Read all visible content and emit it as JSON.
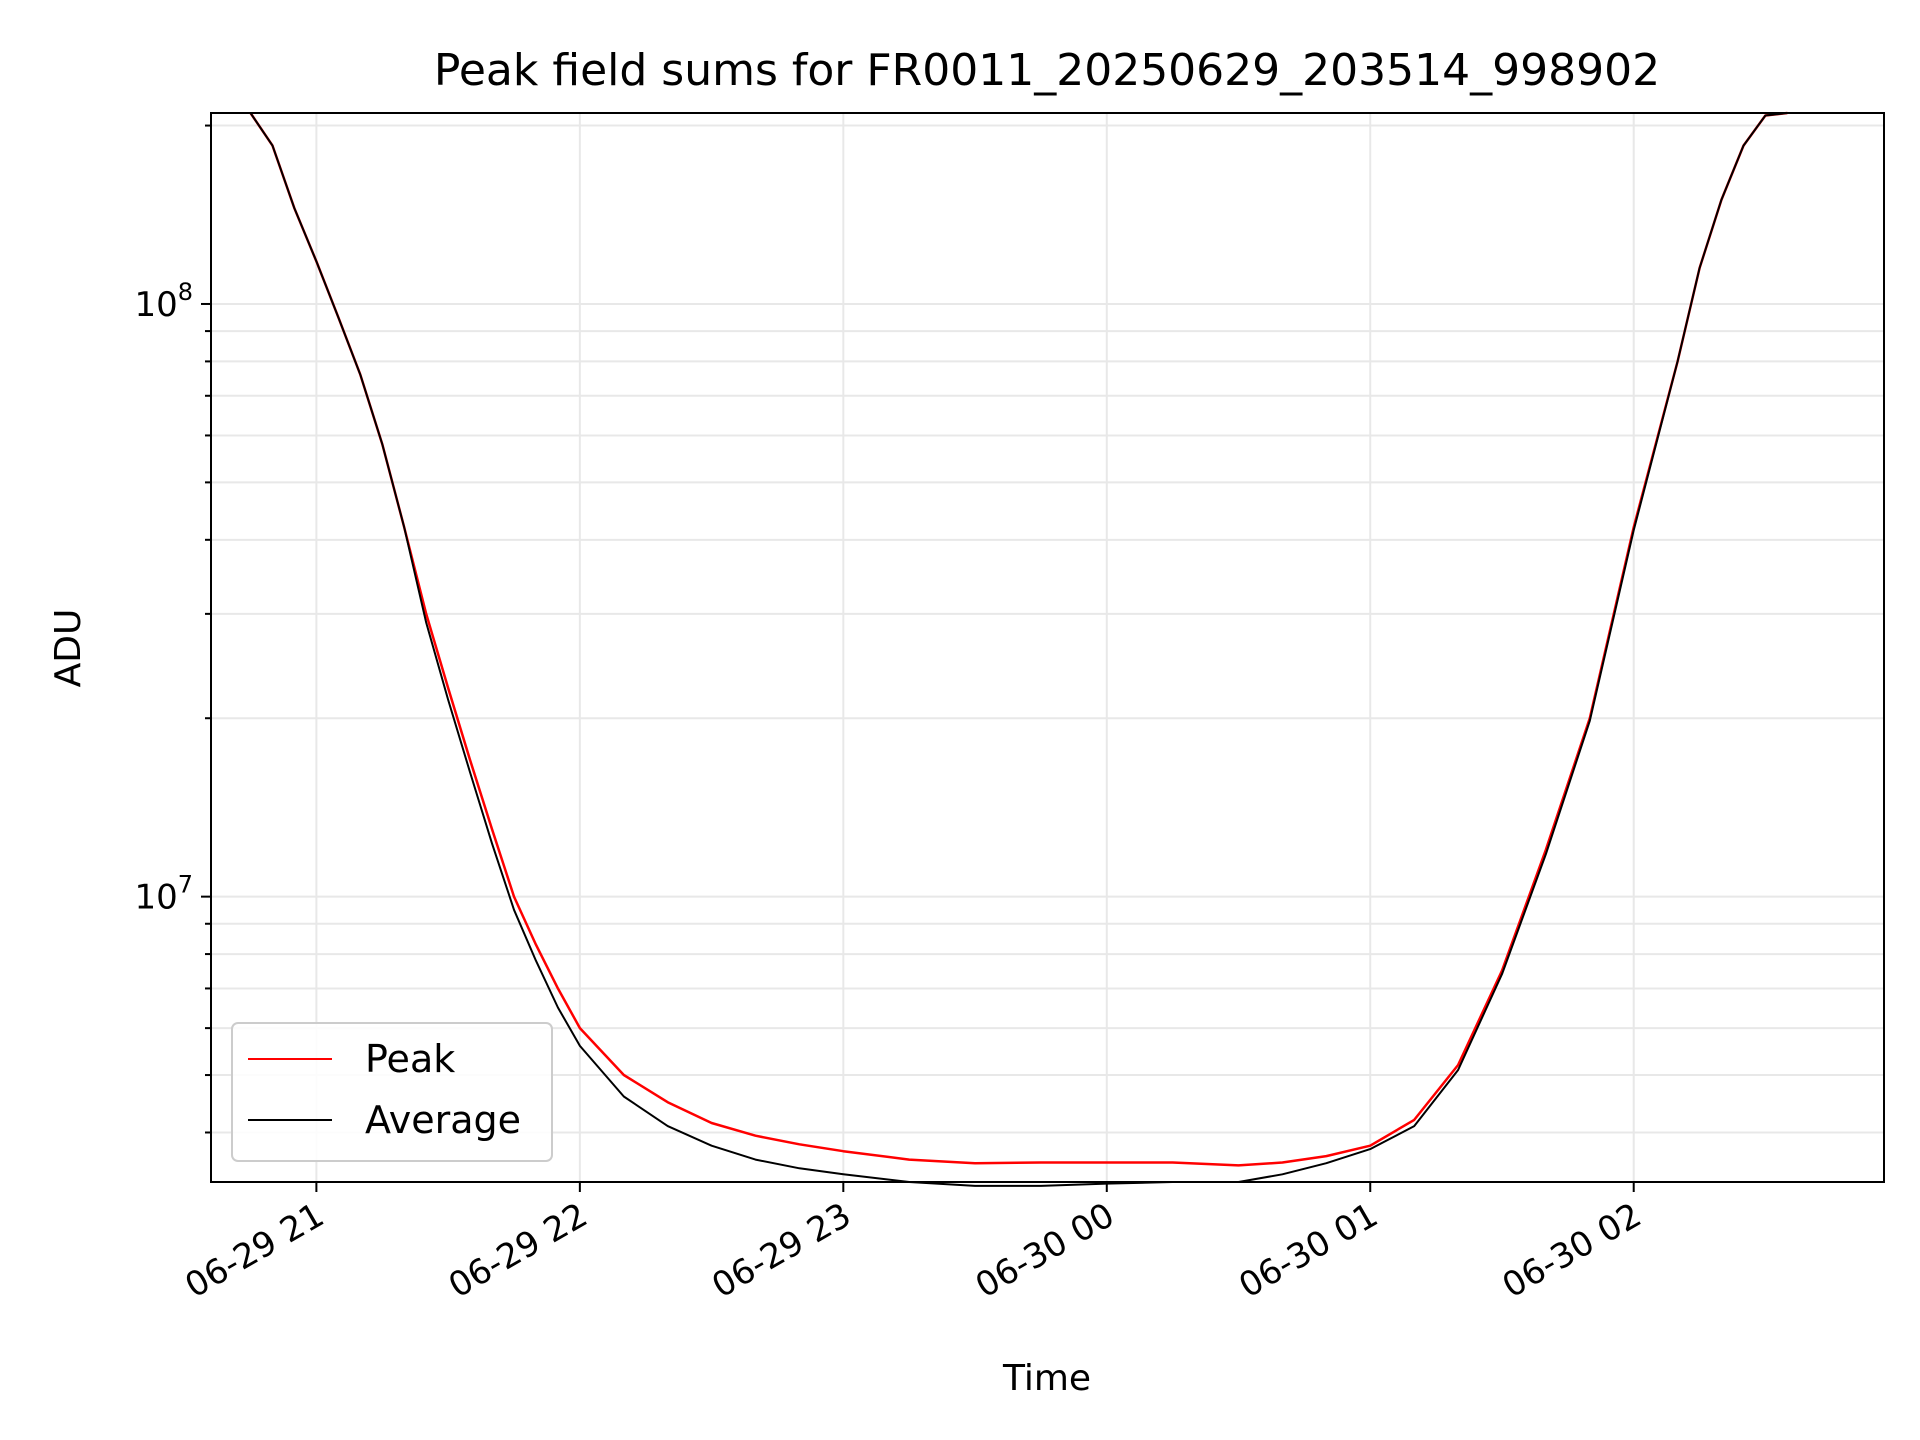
{
  "chart_data": {
    "type": "line",
    "title": "Peak field sums for FR0011_20250629_203514_998902",
    "xlabel": "Time",
    "ylabel": "ADU",
    "yscale": "log",
    "grid": true,
    "legend_placement": "lower-left",
    "xlim": [
      "2025-06-29 20:36",
      "2025-06-30 02:57"
    ],
    "ylim": [
      3300000,
      210000000
    ],
    "x_ticks": [
      {
        "label": "06-29 21",
        "value": "2025-06-29 21:00"
      },
      {
        "label": "06-29 22",
        "value": "2025-06-29 22:00"
      },
      {
        "label": "06-29 23",
        "value": "2025-06-29 23:00"
      },
      {
        "label": "06-30 00",
        "value": "2025-06-30 00:00"
      },
      {
        "label": "06-30 01",
        "value": "2025-06-30 01:00"
      },
      {
        "label": "06-30 02",
        "value": "2025-06-30 02:00"
      }
    ],
    "y_ticks": [
      {
        "base": "10",
        "exp": "7",
        "value": 10000000
      },
      {
        "base": "10",
        "exp": "8",
        "value": 100000000
      }
    ],
    "series": [
      {
        "name": "Peak",
        "color": "#ff0000",
        "x": [
          "2025-06-29 20:45",
          "2025-06-29 20:50",
          "2025-06-29 20:55",
          "2025-06-29 21:00",
          "2025-06-29 21:05",
          "2025-06-29 21:10",
          "2025-06-29 21:15",
          "2025-06-29 21:20",
          "2025-06-29 21:25",
          "2025-06-29 21:30",
          "2025-06-29 21:35",
          "2025-06-29 21:40",
          "2025-06-29 21:45",
          "2025-06-29 21:50",
          "2025-06-29 21:55",
          "2025-06-29 22:00",
          "2025-06-29 22:10",
          "2025-06-29 22:20",
          "2025-06-29 22:30",
          "2025-06-29 22:40",
          "2025-06-29 22:50",
          "2025-06-29 23:00",
          "2025-06-29 23:15",
          "2025-06-29 23:30",
          "2025-06-29 23:45",
          "2025-06-30 00:00",
          "2025-06-30 00:15",
          "2025-06-30 00:30",
          "2025-06-30 00:40",
          "2025-06-30 00:50",
          "2025-06-30 01:00",
          "2025-06-30 01:10",
          "2025-06-30 01:20",
          "2025-06-30 01:30",
          "2025-06-30 01:40",
          "2025-06-30 01:50",
          "2025-06-30 02:00",
          "2025-06-30 02:10",
          "2025-06-30 02:15",
          "2025-06-30 02:20",
          "2025-06-30 02:25",
          "2025-06-30 02:30",
          "2025-06-30 02:35"
        ],
        "values": [
          210000000,
          185000000,
          145000000,
          118000000,
          95000000,
          76000000,
          58000000,
          42000000,
          30000000,
          22500000,
          17000000,
          13000000,
          10000000,
          8300000,
          7000000,
          6000000,
          5000000,
          4500000,
          4150000,
          3950000,
          3820000,
          3720000,
          3600000,
          3550000,
          3560000,
          3560000,
          3560000,
          3520000,
          3560000,
          3650000,
          3800000,
          4200000,
          5200000,
          7500000,
          12000000,
          20000000,
          42000000,
          80000000,
          115000000,
          150000000,
          185000000,
          208000000,
          210000000
        ]
      },
      {
        "name": "Average",
        "color": "#000000",
        "x": [
          "2025-06-29 20:45",
          "2025-06-29 20:50",
          "2025-06-29 20:55",
          "2025-06-29 21:00",
          "2025-06-29 21:05",
          "2025-06-29 21:10",
          "2025-06-29 21:15",
          "2025-06-29 21:20",
          "2025-06-29 21:25",
          "2025-06-29 21:30",
          "2025-06-29 21:35",
          "2025-06-29 21:40",
          "2025-06-29 21:45",
          "2025-06-29 21:50",
          "2025-06-29 21:55",
          "2025-06-29 22:00",
          "2025-06-29 22:10",
          "2025-06-29 22:20",
          "2025-06-29 22:30",
          "2025-06-29 22:40",
          "2025-06-29 22:50",
          "2025-06-29 23:00",
          "2025-06-29 23:15",
          "2025-06-29 23:30",
          "2025-06-29 23:45",
          "2025-06-30 00:00",
          "2025-06-30 00:15",
          "2025-06-30 00:30",
          "2025-06-30 00:40",
          "2025-06-30 00:50",
          "2025-06-30 01:00",
          "2025-06-30 01:10",
          "2025-06-30 01:20",
          "2025-06-30 01:30",
          "2025-06-30 01:40",
          "2025-06-30 01:50",
          "2025-06-30 02:00",
          "2025-06-30 02:10",
          "2025-06-30 02:15",
          "2025-06-30 02:20",
          "2025-06-30 02:25",
          "2025-06-30 02:30",
          "2025-06-30 02:35"
        ],
        "values": [
          210000000,
          185000000,
          145000000,
          118000000,
          95000000,
          76000000,
          58000000,
          42000000,
          29000000,
          21500000,
          16200000,
          12300000,
          9500000,
          7800000,
          6500000,
          5600000,
          4600000,
          4100000,
          3800000,
          3600000,
          3480000,
          3400000,
          3300000,
          3250000,
          3250000,
          3280000,
          3300000,
          3300000,
          3400000,
          3550000,
          3750000,
          4100000,
          5100000,
          7400000,
          11800000,
          19800000,
          41500000,
          80000000,
          115000000,
          150000000,
          185000000,
          208000000,
          210000000
        ]
      }
    ]
  }
}
